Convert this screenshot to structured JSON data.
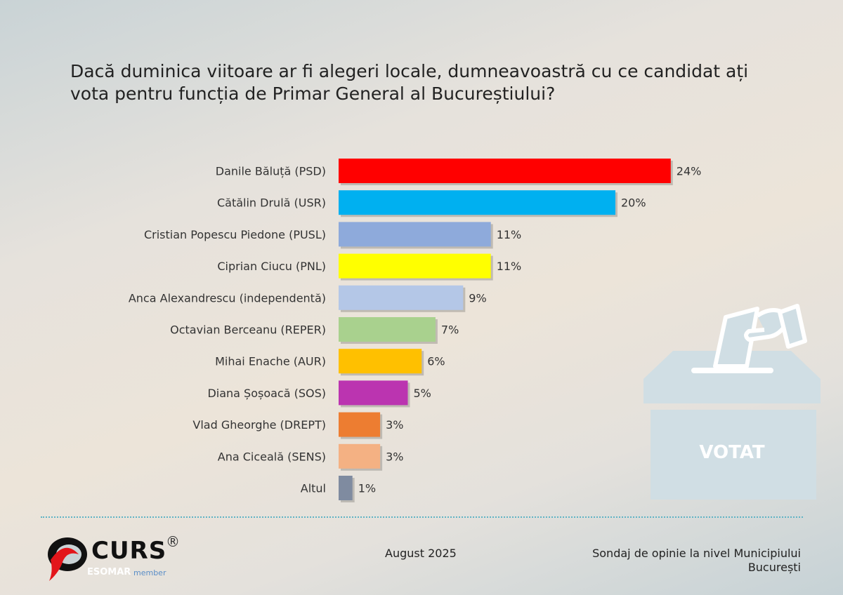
{
  "chart_data": {
    "type": "bar",
    "orientation": "horizontal",
    "title": "Dacă duminica viitoare ar fi alegeri locale, dumneavoastră cu ce candidat ați vota pentru funcția de Primar General al Bucureștiului?",
    "categories": [
      "Danile Băluță (PSD)",
      "Cătălin Drulă (USR)",
      "Cristian Popescu Piedone (PUSL)",
      "Ciprian Ciucu (PNL)",
      "Anca Alexandrescu (independentă)",
      "Octavian Berceanu (REPER)",
      "Mihai Enache (AUR)",
      "Diana Șoșoacă (SOS)",
      "Vlad Gheorghe (DREPT)",
      "Ana Ciceală (SENS)",
      "Altul"
    ],
    "values": [
      24,
      20,
      11,
      11,
      9,
      7,
      6,
      5,
      3,
      3,
      1
    ],
    "value_labels": [
      "24%",
      "20%",
      "11%",
      "11%",
      "9%",
      "7%",
      "6%",
      "5%",
      "3%",
      "3%",
      "1%"
    ],
    "colors": [
      "#ff0000",
      "#00b0f0",
      "#8eaadb",
      "#ffff00",
      "#b4c7e7",
      "#a9d18e",
      "#ffc000",
      "#bb34b0",
      "#ed7d31",
      "#f4b183",
      "#7f8ba0"
    ],
    "unit": "%",
    "grid": false,
    "legend": "none"
  },
  "decoration": {
    "ballot_box_label": "VOTAT",
    "icon": "ballot-box-icon"
  },
  "footer": {
    "brand": "CURS",
    "registered": "®",
    "esomar": "ESOMAR",
    "member": "member",
    "date": "August 2025",
    "source": "Sondaj de opinie la nivel Municipiului București"
  }
}
